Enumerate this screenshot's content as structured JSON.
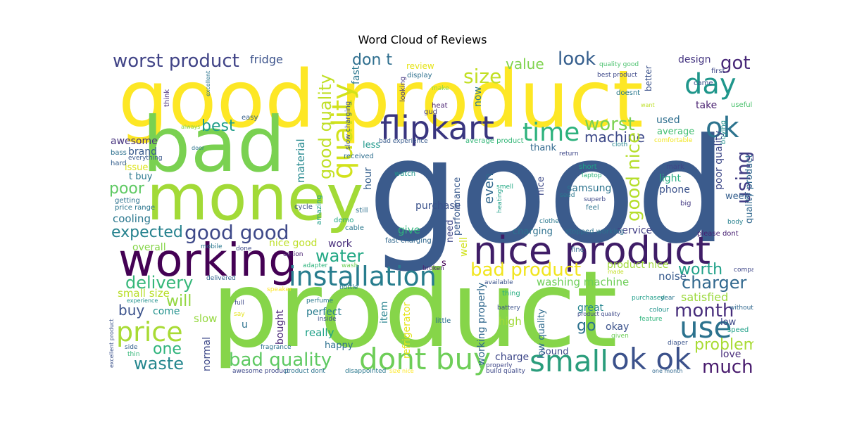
{
  "chart_data": {
    "type": "wordcloud",
    "title": "Word Cloud of Reviews",
    "background": "#ffffff",
    "words": [
      {
        "text": "good",
        "color": "#3b5b8c"
      },
      {
        "text": "product",
        "color": "#86d549"
      },
      {
        "text": "good product",
        "color": "#fde725"
      },
      {
        "text": "bad",
        "color": "#7ad151"
      },
      {
        "text": "money",
        "color": "#a2da37"
      },
      {
        "text": "working",
        "color": "#440154"
      },
      {
        "text": "nice product",
        "color": "#3f1d67"
      },
      {
        "text": "flipkart",
        "color": "#39357f"
      },
      {
        "text": "installation",
        "color": "#287d8e"
      },
      {
        "text": "dont buy",
        "color": "#6ece58"
      },
      {
        "text": "small",
        "color": "#2a9d7c"
      },
      {
        "text": "ok ok",
        "color": "#3b518b"
      },
      {
        "text": "price",
        "color": "#a8db34"
      },
      {
        "text": "use",
        "color": "#2c728e"
      },
      {
        "text": "time",
        "color": "#2db27d"
      },
      {
        "text": "day",
        "color": "#1f968b"
      },
      {
        "text": "ok",
        "color": "#2c738e"
      },
      {
        "text": "quality",
        "color": "#d2e21b"
      },
      {
        "text": "good quality",
        "color": "#c0df25"
      },
      {
        "text": "worst product",
        "color": "#414487"
      },
      {
        "text": "good good",
        "color": "#3e4989"
      },
      {
        "text": "bad product",
        "color": "#f1e51d"
      },
      {
        "text": "bad quality",
        "color": "#5ec962"
      },
      {
        "text": "size",
        "color": "#c2df23"
      },
      {
        "text": "got",
        "color": "#482878"
      },
      {
        "text": "look",
        "color": "#355e8d"
      },
      {
        "text": "using",
        "color": "#433e85"
      },
      {
        "text": "worst",
        "color": "#7ad151"
      },
      {
        "text": "machine",
        "color": "#3e4a89"
      },
      {
        "text": "good nice",
        "color": "#b5de2b"
      },
      {
        "text": "expected",
        "color": "#26828e"
      },
      {
        "text": "water",
        "color": "#22a884"
      },
      {
        "text": "delivery",
        "color": "#35b779"
      },
      {
        "text": "charger",
        "color": "#31688e"
      },
      {
        "text": "worth",
        "color": "#1fa188"
      },
      {
        "text": "month",
        "color": "#472d7b"
      },
      {
        "text": "waste",
        "color": "#24868e"
      },
      {
        "text": "problem",
        "color": "#a8db34"
      },
      {
        "text": "much",
        "color": "#481b6d"
      },
      {
        "text": "one",
        "color": "#2fb47c"
      },
      {
        "text": "buy",
        "color": "#3b528b"
      },
      {
        "text": "will",
        "color": "#93d741"
      },
      {
        "text": "best",
        "color": "#1f9e89"
      },
      {
        "text": "poor",
        "color": "#5ec962"
      },
      {
        "text": "don t",
        "color": "#2e6e8e"
      },
      {
        "text": "value",
        "color": "#7fd34e"
      },
      {
        "text": "go",
        "color": "#2c718e"
      },
      {
        "text": "fridge",
        "color": "#3b528b"
      },
      {
        "text": "awesome",
        "color": "#46327e"
      },
      {
        "text": "brand",
        "color": "#38598c"
      },
      {
        "text": "cooling",
        "color": "#2a778e"
      },
      {
        "text": "overall",
        "color": "#86d549"
      },
      {
        "text": "small size",
        "color": "#b8de29"
      },
      {
        "text": "slow",
        "color": "#95d840"
      },
      {
        "text": "come",
        "color": "#21918c"
      },
      {
        "text": "perfect",
        "color": "#287c8e"
      },
      {
        "text": "really",
        "color": "#1fa088"
      },
      {
        "text": "happy",
        "color": "#2d708e"
      },
      {
        "text": "normal",
        "color": "#3e4989"
      },
      {
        "text": "bought",
        "color": "#482576"
      },
      {
        "text": "item",
        "color": "#26828e"
      },
      {
        "text": "refrigerator",
        "color": "#e5e419"
      },
      {
        "text": "working properly",
        "color": "#31688e"
      },
      {
        "text": "high",
        "color": "#a0da39"
      },
      {
        "text": "charge",
        "color": "#3f4889"
      },
      {
        "text": "sound",
        "color": "#3e4989"
      },
      {
        "text": "low quality",
        "color": "#2f6b8e"
      },
      {
        "text": "great",
        "color": "#25858e"
      },
      {
        "text": "okay",
        "color": "#3b528b"
      },
      {
        "text": "satisfied",
        "color": "#9bd93c"
      },
      {
        "text": "love",
        "color": "#472a7a"
      },
      {
        "text": "low",
        "color": "#3e4989"
      },
      {
        "text": "noise",
        "color": "#375a8c"
      },
      {
        "text": "washing machine",
        "color": "#6ece58"
      },
      {
        "text": "product nice",
        "color": "#a0da39"
      },
      {
        "text": "service",
        "color": "#423f85"
      },
      {
        "text": "charging",
        "color": "#2d718e"
      },
      {
        "text": "give",
        "color": "#2fb47c"
      },
      {
        "text": "purchase",
        "color": "#3b528b"
      },
      {
        "text": "even",
        "color": "#31688e"
      },
      {
        "text": "performance",
        "color": "#38598c"
      },
      {
        "text": "samsung",
        "color": "#2c738e"
      },
      {
        "text": "light",
        "color": "#27ad81"
      },
      {
        "text": "phone",
        "color": "#3b528b"
      },
      {
        "text": "week",
        "color": "#355f8d"
      },
      {
        "text": "average",
        "color": "#42be71"
      },
      {
        "text": "design",
        "color": "#453581"
      },
      {
        "text": "take",
        "color": "#481f70"
      },
      {
        "text": "used",
        "color": "#2e6e8e"
      },
      {
        "text": "thank",
        "color": "#31688e"
      },
      {
        "text": "less",
        "color": "#1f988b"
      },
      {
        "text": "now",
        "color": "#2a788e"
      },
      {
        "text": "fast",
        "color": "#2a768e"
      },
      {
        "text": "need",
        "color": "#3f4889"
      },
      {
        "text": "hour",
        "color": "#35608d"
      },
      {
        "text": "material",
        "color": "#23888e"
      },
      {
        "text": "nice good",
        "color": "#bddf26"
      },
      {
        "text": "work",
        "color": "#472d7b"
      },
      {
        "text": "issue",
        "color": "#dde318"
      },
      {
        "text": "t buy",
        "color": "#2a788e"
      },
      {
        "text": "u",
        "color": "#2c728e"
      },
      {
        "text": "s",
        "color": "#440154"
      },
      {
        "text": "well",
        "color": "#d0e11c"
      },
      {
        "text": "nice",
        "color": "#3e4a89"
      },
      {
        "text": "review",
        "color": "#e5e419"
      },
      {
        "text": "poor quality",
        "color": "#3e4989"
      },
      {
        "text": "quality product",
        "color": "#31688e"
      },
      {
        "text": "better",
        "color": "#3b528b"
      },
      {
        "text": "first",
        "color": "#3f4788"
      },
      {
        "text": "came",
        "color": "#3b528b"
      },
      {
        "text": "buying",
        "color": "#21908d"
      },
      {
        "text": "useful",
        "color": "#4ac16d"
      },
      {
        "text": "doesnt",
        "color": "#2a788e"
      },
      {
        "text": "want",
        "color": "#bddf26"
      },
      {
        "text": "excellent",
        "color": "#2b748e"
      },
      {
        "text": "think",
        "color": "#472c7a"
      },
      {
        "text": "always",
        "color": "#86d549"
      },
      {
        "text": "easy",
        "color": "#355e8d"
      },
      {
        "text": "bass",
        "color": "#2d708e"
      },
      {
        "text": "everything",
        "color": "#38588c"
      },
      {
        "text": "hard",
        "color": "#355f8d"
      },
      {
        "text": "getting",
        "color": "#2c728e"
      },
      {
        "text": "price range",
        "color": "#2b758e"
      },
      {
        "text": "display",
        "color": "#2d708e"
      },
      {
        "text": "best product",
        "color": "#3e4989"
      },
      {
        "text": "quality good",
        "color": "#4ac16d"
      },
      {
        "text": "make",
        "color": "#90d743"
      },
      {
        "text": "looking",
        "color": "#453781"
      },
      {
        "text": "heat",
        "color": "#481f70"
      },
      {
        "text": "gud",
        "color": "#433e85"
      },
      {
        "text": "door",
        "color": "#2c728e"
      },
      {
        "text": "slow charging",
        "color": "#3a538b"
      },
      {
        "text": "received",
        "color": "#2e6e8e"
      },
      {
        "text": "bad experience",
        "color": "#375a8c"
      },
      {
        "text": "average product",
        "color": "#35b779"
      },
      {
        "text": "cloth",
        "color": "#25838e"
      },
      {
        "text": "comfortable",
        "color": "#f1e51d"
      },
      {
        "text": "return",
        "color": "#3f4889"
      },
      {
        "text": "watch",
        "color": "#1f958b"
      },
      {
        "text": "short",
        "color": "#1fa188"
      },
      {
        "text": "laptop",
        "color": "#2fb47c"
      },
      {
        "text": "mark",
        "color": "#3f4788"
      },
      {
        "text": "smell",
        "color": "#22a884"
      },
      {
        "text": "seed",
        "color": "#2a788e"
      },
      {
        "text": "superb",
        "color": "#3e4989"
      },
      {
        "text": "feel",
        "color": "#2c738e"
      },
      {
        "text": "big",
        "color": "#443a83"
      },
      {
        "text": "cycle",
        "color": "#3b528b"
      },
      {
        "text": "heating",
        "color": "#1fa088"
      },
      {
        "text": "amazing",
        "color": "#1f9e89"
      },
      {
        "text": "demo",
        "color": "#22a785"
      },
      {
        "text": "still",
        "color": "#2d708e"
      },
      {
        "text": "cable",
        "color": "#2a788e"
      },
      {
        "text": "fast charging",
        "color": "#31688e"
      },
      {
        "text": "stopped working",
        "color": "#2d718e"
      },
      {
        "text": "clothe",
        "color": "#2a788e"
      },
      {
        "text": "please dont",
        "color": "#482173"
      },
      {
        "text": "body",
        "color": "#27808e"
      },
      {
        "text": "mobile",
        "color": "#2a788e"
      },
      {
        "text": "done",
        "color": "#3e4a89"
      },
      {
        "text": "option",
        "color": "#482071"
      },
      {
        "text": "broken",
        "color": "#481f70"
      },
      {
        "text": "fine",
        "color": "#31688e"
      },
      {
        "text": "made",
        "color": "#c2df23"
      },
      {
        "text": "company",
        "color": "#3f4788"
      },
      {
        "text": "adapter",
        "color": "#2fb47c"
      },
      {
        "text": "wash",
        "color": "#6ece58"
      },
      {
        "text": "bottle",
        "color": "#2a788e"
      },
      {
        "text": "available",
        "color": "#3a538b"
      },
      {
        "text": "delivered",
        "color": "#32648e"
      },
      {
        "text": "speaker",
        "color": "#fde725"
      },
      {
        "text": "thing",
        "color": "#27ad81"
      },
      {
        "text": "purchased",
        "color": "#1f9e89"
      },
      {
        "text": "year",
        "color": "#2a768e"
      },
      {
        "text": "experience",
        "color": "#21918c"
      },
      {
        "text": "full",
        "color": "#3e4989"
      },
      {
        "text": "perfume",
        "color": "#2a788e"
      },
      {
        "text": "inside",
        "color": "#3b528b"
      },
      {
        "text": "little",
        "color": "#2c718e"
      },
      {
        "text": "battery",
        "color": "#3b528b"
      },
      {
        "text": "colour",
        "color": "#20928c"
      },
      {
        "text": "without",
        "color": "#31688e"
      },
      {
        "text": "product quality",
        "color": "#3e4989"
      },
      {
        "text": "feature",
        "color": "#2fb47c"
      },
      {
        "text": "say",
        "color": "#e5e419"
      },
      {
        "text": "excellent product",
        "color": "#3b528b"
      },
      {
        "text": "side",
        "color": "#34608d"
      },
      {
        "text": "thin",
        "color": "#35b779"
      },
      {
        "text": "fragrance",
        "color": "#2c728e"
      },
      {
        "text": "speed",
        "color": "#1fa088"
      },
      {
        "text": "given",
        "color": "#6ece58"
      },
      {
        "text": "diaper",
        "color": "#3a548c"
      },
      {
        "text": "properly",
        "color": "#3f4788"
      },
      {
        "text": "build quality",
        "color": "#3e4989"
      },
      {
        "text": "one month",
        "color": "#31688e"
      },
      {
        "text": "awesome product",
        "color": "#3e4989"
      },
      {
        "text": "product dont",
        "color": "#2c738e"
      },
      {
        "text": "disappointed",
        "color": "#2a788e"
      },
      {
        "text": "size nice",
        "color": "#fde725"
      }
    ]
  }
}
